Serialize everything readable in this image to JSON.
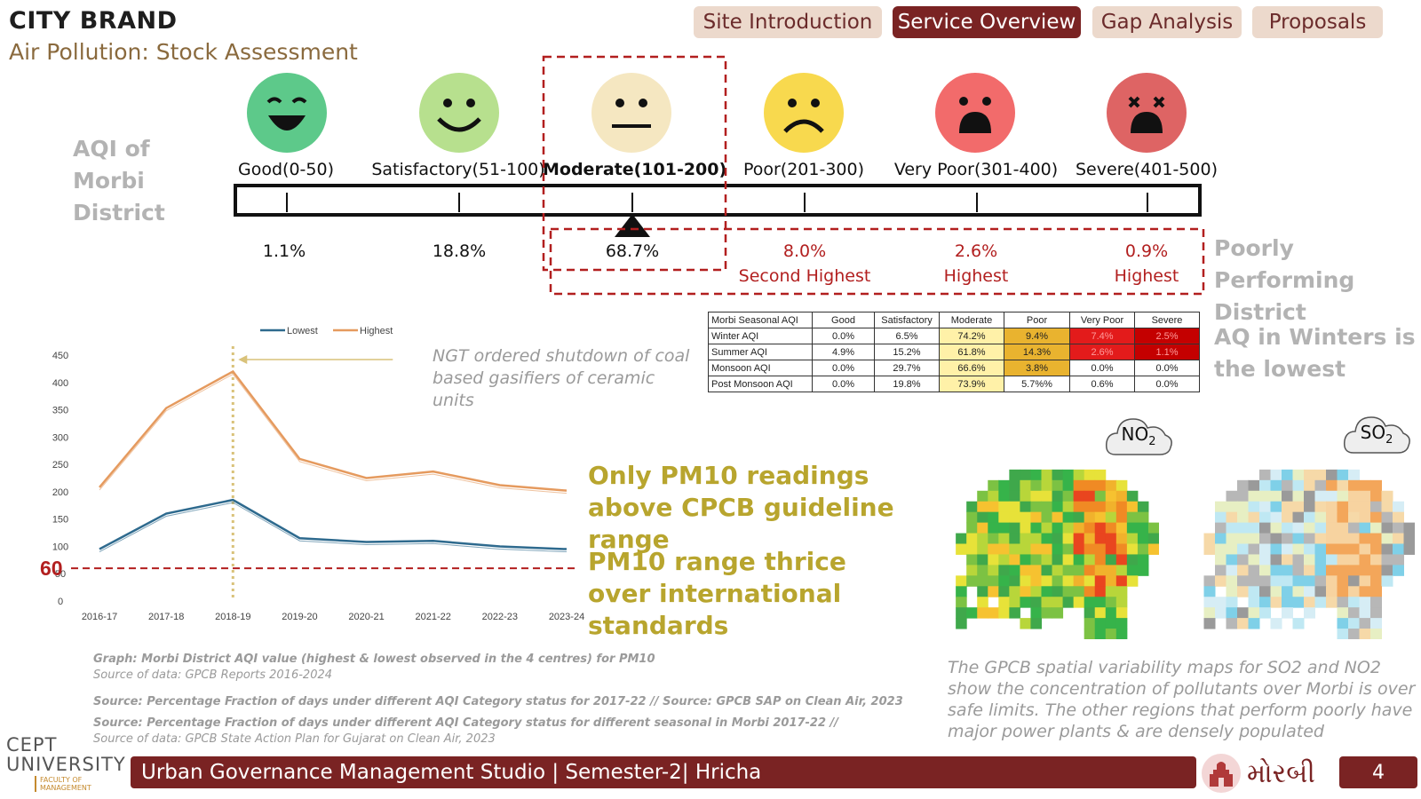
{
  "header": {
    "brand": "CITY BRAND",
    "subtitle": "Air Pollution: Stock Assessment"
  },
  "nav": {
    "tabs": [
      {
        "label": "Site Introduction",
        "active": false
      },
      {
        "label": "Service Overview",
        "active": true
      },
      {
        "label": "Gap Analysis",
        "active": false
      },
      {
        "label": "Proposals",
        "active": false
      }
    ]
  },
  "aqi_scale": {
    "side_label": "AQI of Morbi District",
    "categories": [
      {
        "label": "Good(0-50)",
        "percent": "1.1%",
        "note": "",
        "color": "#5dc98a",
        "icon": "laughing-face-icon"
      },
      {
        "label": "Satisfactory(51-100)",
        "percent": "18.8%",
        "note": "",
        "color": "#b7e08e",
        "icon": "smiling-face-icon"
      },
      {
        "label": "Moderate(101-200)",
        "percent": "68.7%",
        "note": "",
        "color": "#f5e7c1",
        "icon": "neutral-face-icon"
      },
      {
        "label": "Poor(201-300)",
        "percent": "8.0%",
        "note": "Second Highest",
        "color": "#f8d94e",
        "icon": "frowning-face-icon"
      },
      {
        "label": "Very Poor(301-400)",
        "percent": "2.6%",
        "note": "Highest",
        "color": "#f26b6b",
        "icon": "shocked-face-icon"
      },
      {
        "label": "Severe(401-500)",
        "percent": "0.9%",
        "note": "Highest",
        "color": "#de6464",
        "icon": "dizzy-face-icon"
      }
    ],
    "poor_side_label": "Poorly Performing District"
  },
  "seasonal_table": {
    "headers": [
      "Morbi Seasonal AQI",
      "Good",
      "Satisfactory",
      "Moderate",
      "Poor",
      "Very Poor",
      "Severe"
    ],
    "rows": [
      [
        "Winter AQI",
        "0.0%",
        "6.5%",
        "74.2%",
        "9.4%",
        "7.4%",
        "2.5%"
      ],
      [
        "Summer AQI",
        "4.9%",
        "15.2%",
        "61.8%",
        "14.3%",
        "2.6%",
        "1.1%"
      ],
      [
        "Monsoon AQI",
        "0.0%",
        "29.7%",
        "66.6%",
        "3.8%",
        "0.0%",
        "0.0%"
      ],
      [
        "Post Monsoon AQI",
        "0.0%",
        "19.8%",
        "73.9%",
        "5.7%%",
        "0.6%",
        "0.0%"
      ]
    ],
    "side_label": "AQ in Winters is the lowest"
  },
  "chart_data": {
    "type": "line",
    "categories": [
      "2016-17",
      "2017-18",
      "2018-19",
      "2019-20",
      "2020-21",
      "2021-22",
      "2022-23",
      "2023-24"
    ],
    "series": [
      {
        "name": "Lowest",
        "values": [
          95,
          160,
          185,
          115,
          108,
          110,
          100,
          95
        ],
        "color": "#2e6a8e"
      },
      {
        "name": "Highest",
        "values": [
          208,
          353,
          420,
          260,
          225,
          237,
          212,
          202
        ],
        "color": "#e59a5e"
      }
    ],
    "ylim": [
      0,
      450
    ],
    "yticks": [
      0,
      50,
      100,
      150,
      200,
      250,
      300,
      350,
      400,
      450
    ],
    "reference_line": {
      "value": 60,
      "label": "60",
      "color": "#b21f1f"
    },
    "event_marker": {
      "category": "2018-19",
      "color": "#d9c27a"
    },
    "legend_position": "top",
    "annotation": "NGT ordered shutdown of coal based gasifiers of ceramic units"
  },
  "captions": {
    "pm_above": "Only PM10 readings above CPCB guideline range",
    "pm_thrice": "PM10 range thrice over international standards",
    "graph_caption": "Graph: Morbi District AQI value (highest & lowest observed in the 4 centres) for PM10",
    "graph_source": "Source of data: GPCB Reports 2016-2024",
    "source1": "Source: Percentage Fraction of days under different AQI Category status for 2017-22 // Source: GPCB SAP on Clean Air, 2023",
    "source2": "Source: Percentage Fraction of days under different AQI Category status for different seasonal in Morbi 2017-22 //",
    "source2b": "Source of data: GPCB State Action Plan for Gujarat on Clean Air, 2023",
    "map_caption": "The GPCB spatial variability maps for SO2 and NO2  show the concentration of pollutants over Morbi is over safe limits. The other regions that perform poorly have major power plants & are densely populated"
  },
  "maps": {
    "no2_label": "NO",
    "no2_sub": "2",
    "so2_label": "SO",
    "so2_sub": "2"
  },
  "footer": {
    "text": "Urban Governance Management Studio | Semester-2| Hricha",
    "page": "4",
    "cept_top": "CEPT",
    "cept_bottom": "UNIVERSITY",
    "cept_faculty": "FACULTY OF MANAGEMENT",
    "morbi": "મોરબી"
  }
}
